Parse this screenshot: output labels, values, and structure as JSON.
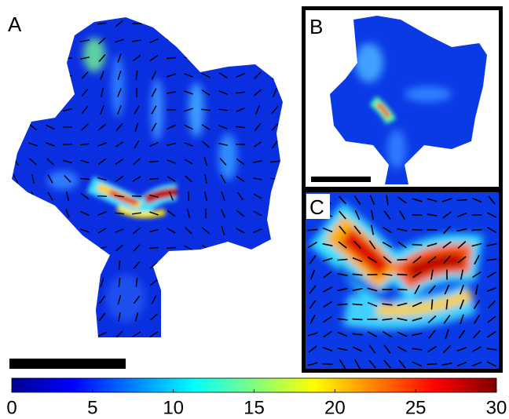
{
  "panels": {
    "a": {
      "label": "A"
    },
    "b": {
      "label": "B"
    },
    "c": {
      "label": "C"
    }
  },
  "colorbar": {
    "lim": [
      0,
      30
    ],
    "ticks": [
      0,
      5,
      10,
      15,
      20,
      25,
      30
    ]
  }
}
